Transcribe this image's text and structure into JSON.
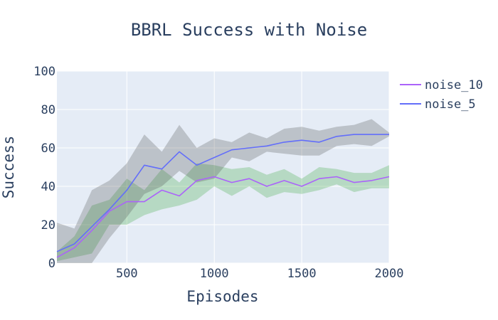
{
  "chart_data": {
    "type": "line",
    "title": "BBRL Success with Noise",
    "xlabel": "Episodes",
    "ylabel": "Success",
    "xlim": [
      100,
      2000
    ],
    "ylim": [
      0,
      100
    ],
    "xticks": [
      500,
      1000,
      1500,
      2000
    ],
    "yticks": [
      0,
      20,
      40,
      60,
      80,
      100
    ],
    "grid": true,
    "legend": "top-right",
    "plot_bgcolor": "#e5ecf6",
    "x": [
      100,
      200,
      300,
      400,
      500,
      600,
      700,
      800,
      900,
      1000,
      1100,
      1200,
      1300,
      1400,
      1500,
      1600,
      1700,
      1800,
      1900,
      2000
    ],
    "series": [
      {
        "name": "noise_10",
        "color": "#ab63fa",
        "band_color": "#2ca02c",
        "values": [
          3,
          8,
          17,
          27,
          32,
          32,
          38,
          35,
          43,
          45,
          42,
          44,
          40,
          43,
          40,
          44,
          45,
          42,
          43,
          45
        ],
        "upper": [
          6,
          14,
          30,
          33,
          44,
          38,
          49,
          42,
          52,
          51,
          49,
          50,
          46,
          49,
          44,
          50,
          49,
          47,
          47,
          51
        ],
        "lower": [
          1,
          3,
          5,
          20,
          20,
          25,
          28,
          30,
          33,
          40,
          35,
          40,
          34,
          37,
          36,
          38,
          41,
          37,
          39,
          39
        ]
      },
      {
        "name": "noise_5",
        "color": "#636efa",
        "band_color": "#444444",
        "values": [
          6,
          10,
          19,
          28,
          38,
          51,
          49,
          58,
          51,
          55,
          59,
          60,
          61,
          63,
          64,
          63,
          66,
          67,
          67,
          67
        ],
        "upper": [
          21,
          18,
          38,
          43,
          52,
          67,
          58,
          72,
          60,
          65,
          63,
          68,
          65,
          70,
          71,
          69,
          71,
          72,
          75,
          68
        ],
        "lower": [
          0,
          0,
          0,
          13,
          24,
          36,
          40,
          48,
          42,
          44,
          55,
          53,
          58,
          57,
          56,
          56,
          61,
          62,
          61,
          66
        ]
      }
    ]
  }
}
